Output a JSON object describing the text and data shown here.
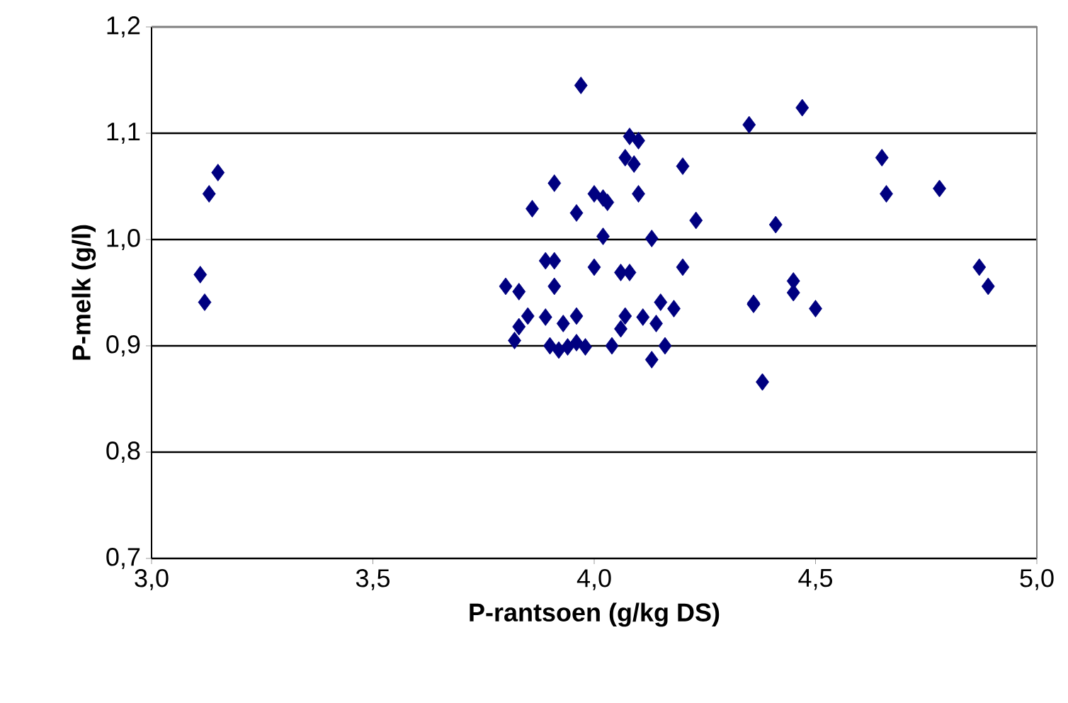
{
  "chart_data": {
    "type": "scatter",
    "xlabel": "P-rantsoen (g/kg DS)",
    "ylabel": "P-melk (g/l)",
    "xlim": [
      3.0,
      5.0
    ],
    "ylim": [
      0.7,
      1.2
    ],
    "xticks": [
      {
        "value": 3.0,
        "label": "3,0"
      },
      {
        "value": 3.5,
        "label": "3,5"
      },
      {
        "value": 4.0,
        "label": "4,0"
      },
      {
        "value": 4.5,
        "label": "4,5"
      },
      {
        "value": 5.0,
        "label": "5,0"
      }
    ],
    "yticks": [
      {
        "value": 0.7,
        "label": "0,7"
      },
      {
        "value": 0.8,
        "label": "0,8"
      },
      {
        "value": 0.9,
        "label": "0,9"
      },
      {
        "value": 1.0,
        "label": "1,0"
      },
      {
        "value": 1.1,
        "label": "1,1"
      },
      {
        "value": 1.2,
        "label": "1,2"
      }
    ],
    "grid": "y",
    "marker": "diamond",
    "series": [
      {
        "color": "#000080",
        "x": [
          3.11,
          3.12,
          3.13,
          3.15,
          3.97,
          4.35,
          4.08,
          4.1,
          4.07,
          4.09,
          4.2,
          3.91,
          4.0,
          4.1,
          4.02,
          4.03,
          3.86,
          3.96,
          4.23,
          4.02,
          4.13,
          3.89,
          3.91,
          4.0,
          4.2,
          4.06,
          4.08,
          3.8,
          3.83,
          3.91,
          4.15,
          4.18,
          4.36,
          3.85,
          3.89,
          3.96,
          3.93,
          4.07,
          4.11,
          4.14,
          4.06,
          3.83,
          3.82,
          3.9,
          3.92,
          3.94,
          3.96,
          3.98,
          4.04,
          4.16,
          4.13,
          4.65,
          4.66,
          4.78,
          4.41,
          4.87,
          4.89,
          4.45,
          4.45,
          4.36,
          4.5,
          4.38,
          4.47
        ],
        "values": [
          0.967,
          0.941,
          1.043,
          1.063,
          1.145,
          1.108,
          1.097,
          1.093,
          1.077,
          1.071,
          1.069,
          1.053,
          1.043,
          1.043,
          1.039,
          1.035,
          1.029,
          1.025,
          1.018,
          1.003,
          1.001,
          0.98,
          0.98,
          0.974,
          0.974,
          0.969,
          0.969,
          0.956,
          0.951,
          0.956,
          0.941,
          0.935,
          0.94,
          0.928,
          0.927,
          0.928,
          0.921,
          0.928,
          0.927,
          0.921,
          0.916,
          0.918,
          0.905,
          0.9,
          0.896,
          0.899,
          0.903,
          0.899,
          0.9,
          0.9,
          0.887,
          1.077,
          1.043,
          1.048,
          1.014,
          0.974,
          0.956,
          0.961,
          0.95,
          0.939,
          0.935,
          0.866,
          1.124
        ]
      }
    ]
  }
}
